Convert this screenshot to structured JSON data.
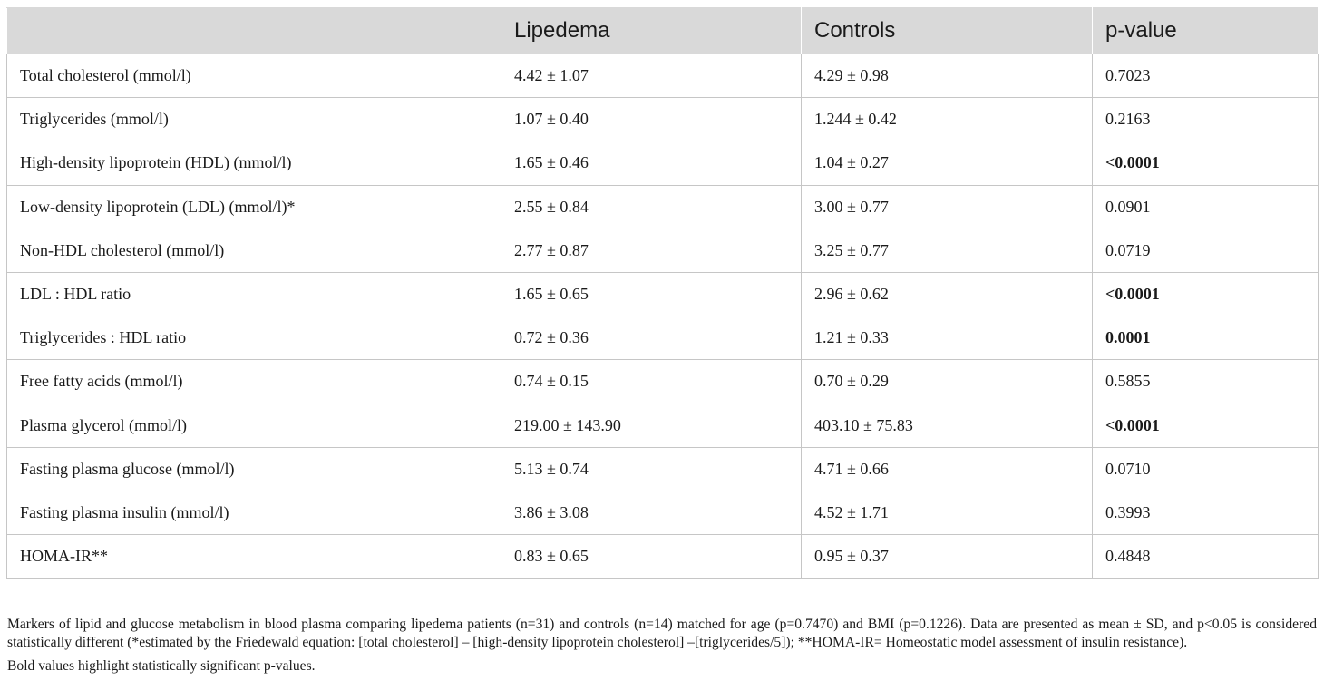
{
  "table": {
    "headers": [
      "",
      "Lipedema",
      "Controls",
      "p-value"
    ],
    "rows": [
      {
        "label": "Total cholesterol (mmol/l)",
        "lipedema": "4.42 ± 1.07",
        "controls": "4.29 ± 0.98",
        "p": "0.7023",
        "bold": false
      },
      {
        "label": "Triglycerides (mmol/l)",
        "lipedema": "1.07 ± 0.40",
        "controls": "1.244 ± 0.42",
        "p": "0.2163",
        "bold": false
      },
      {
        "label": "High-density lipoprotein (HDL) (mmol/l)",
        "lipedema": "1.65 ± 0.46",
        "controls": "1.04 ± 0.27",
        "p": "<0.0001",
        "bold": true
      },
      {
        "label": "Low-density lipoprotein (LDL) (mmol/l)*",
        "lipedema": "2.55 ± 0.84",
        "controls": "3.00 ± 0.77",
        "p": "0.0901",
        "bold": false
      },
      {
        "label": "Non-HDL cholesterol (mmol/l)",
        "lipedema": "2.77 ± 0.87",
        "controls": "3.25 ± 0.77",
        "p": "0.0719",
        "bold": false
      },
      {
        "label": "LDL : HDL ratio",
        "lipedema": "1.65 ± 0.65",
        "controls": "2.96 ± 0.62",
        "p": "<0.0001",
        "bold": true
      },
      {
        "label": "Triglycerides : HDL ratio",
        "lipedema": "0.72 ± 0.36",
        "controls": "1.21 ± 0.33",
        "p": "0.0001",
        "bold": true
      },
      {
        "label": "Free fatty acids (mmol/l)",
        "lipedema": "0.74 ± 0.15",
        "controls": "0.70 ± 0.29",
        "p": "0.5855",
        "bold": false
      },
      {
        "label": "Plasma glycerol (mmol/l)",
        "lipedema": "219.00 ± 143.90",
        "controls": "403.10 ± 75.83",
        "p": "<0.0001",
        "bold": true
      },
      {
        "label": "Fasting plasma glucose (mmol/l)",
        "lipedema": "5.13 ± 0.74",
        "controls": "4.71 ± 0.66",
        "p": "0.0710",
        "bold": false
      },
      {
        "label": "Fasting plasma insulin (mmol/l)",
        "lipedema": "3.86 ± 3.08",
        "controls": "4.52 ± 1.71",
        "p": "0.3993",
        "bold": false
      },
      {
        "label": "HOMA-IR**",
        "lipedema": "0.83 ± 0.65",
        "controls": "0.95 ± 0.37",
        "p": "0.4848",
        "bold": false
      }
    ]
  },
  "footnote": "Markers of lipid and glucose metabolism in blood plasma comparing lipedema patients (n=31) and controls (n=14) matched for age (p=0.7470) and BMI (p=0.1226). Data are presented as mean ± SD, and p<0.05 is considered statistically different (*estimated by the Friedewald equation: [total cholesterol] – [high-density lipoprotein cholesterol] –[triglycerides/5]); **HOMA-IR= Homeostatic model assessment of insulin resistance).",
  "note": "Bold values highlight statistically significant p-values."
}
